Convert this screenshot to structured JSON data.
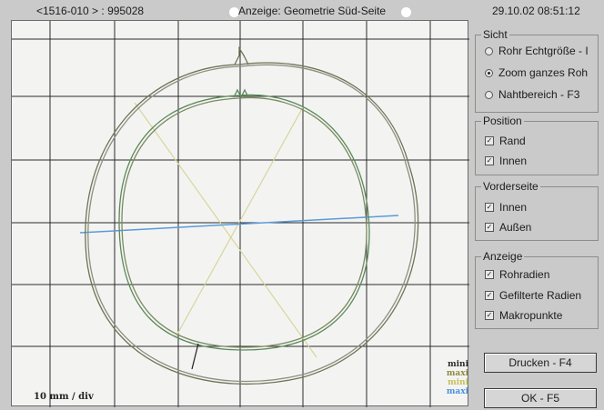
{
  "header": {
    "left": "<1516-010 > : 995028",
    "center": "Anzeige: Geometrie Süd-Seite",
    "right": "29.10.02 08:51:12"
  },
  "plot": {
    "scale_label": "10 mm / div",
    "legend": [
      {
        "label": "mini",
        "color": "#2b2b2b"
      },
      {
        "label": "maxi",
        "color": "#8f8a40"
      },
      {
        "label": "mini",
        "color": "#c6c05a"
      },
      {
        "label": "maxi",
        "color": "#4a90e2"
      }
    ]
  },
  "sicht": {
    "title": "Sicht",
    "options": [
      "Rohr Echtgröße - I",
      "Zoom ganzes Roh",
      "Nahtbereich - F3"
    ],
    "selected_index": 1
  },
  "position": {
    "title": "Position",
    "options": [
      "Rand",
      "Innen"
    ]
  },
  "vorderseite": {
    "title": "Vorderseite",
    "options": [
      "Innen",
      "Außen"
    ]
  },
  "anzeige": {
    "title": "Anzeige",
    "options": [
      "Rohradien",
      "Gefilterte Radien",
      "Makropunkte"
    ]
  },
  "buttons": {
    "print": "Drucken - F4",
    "ok": "OK - F5"
  }
}
